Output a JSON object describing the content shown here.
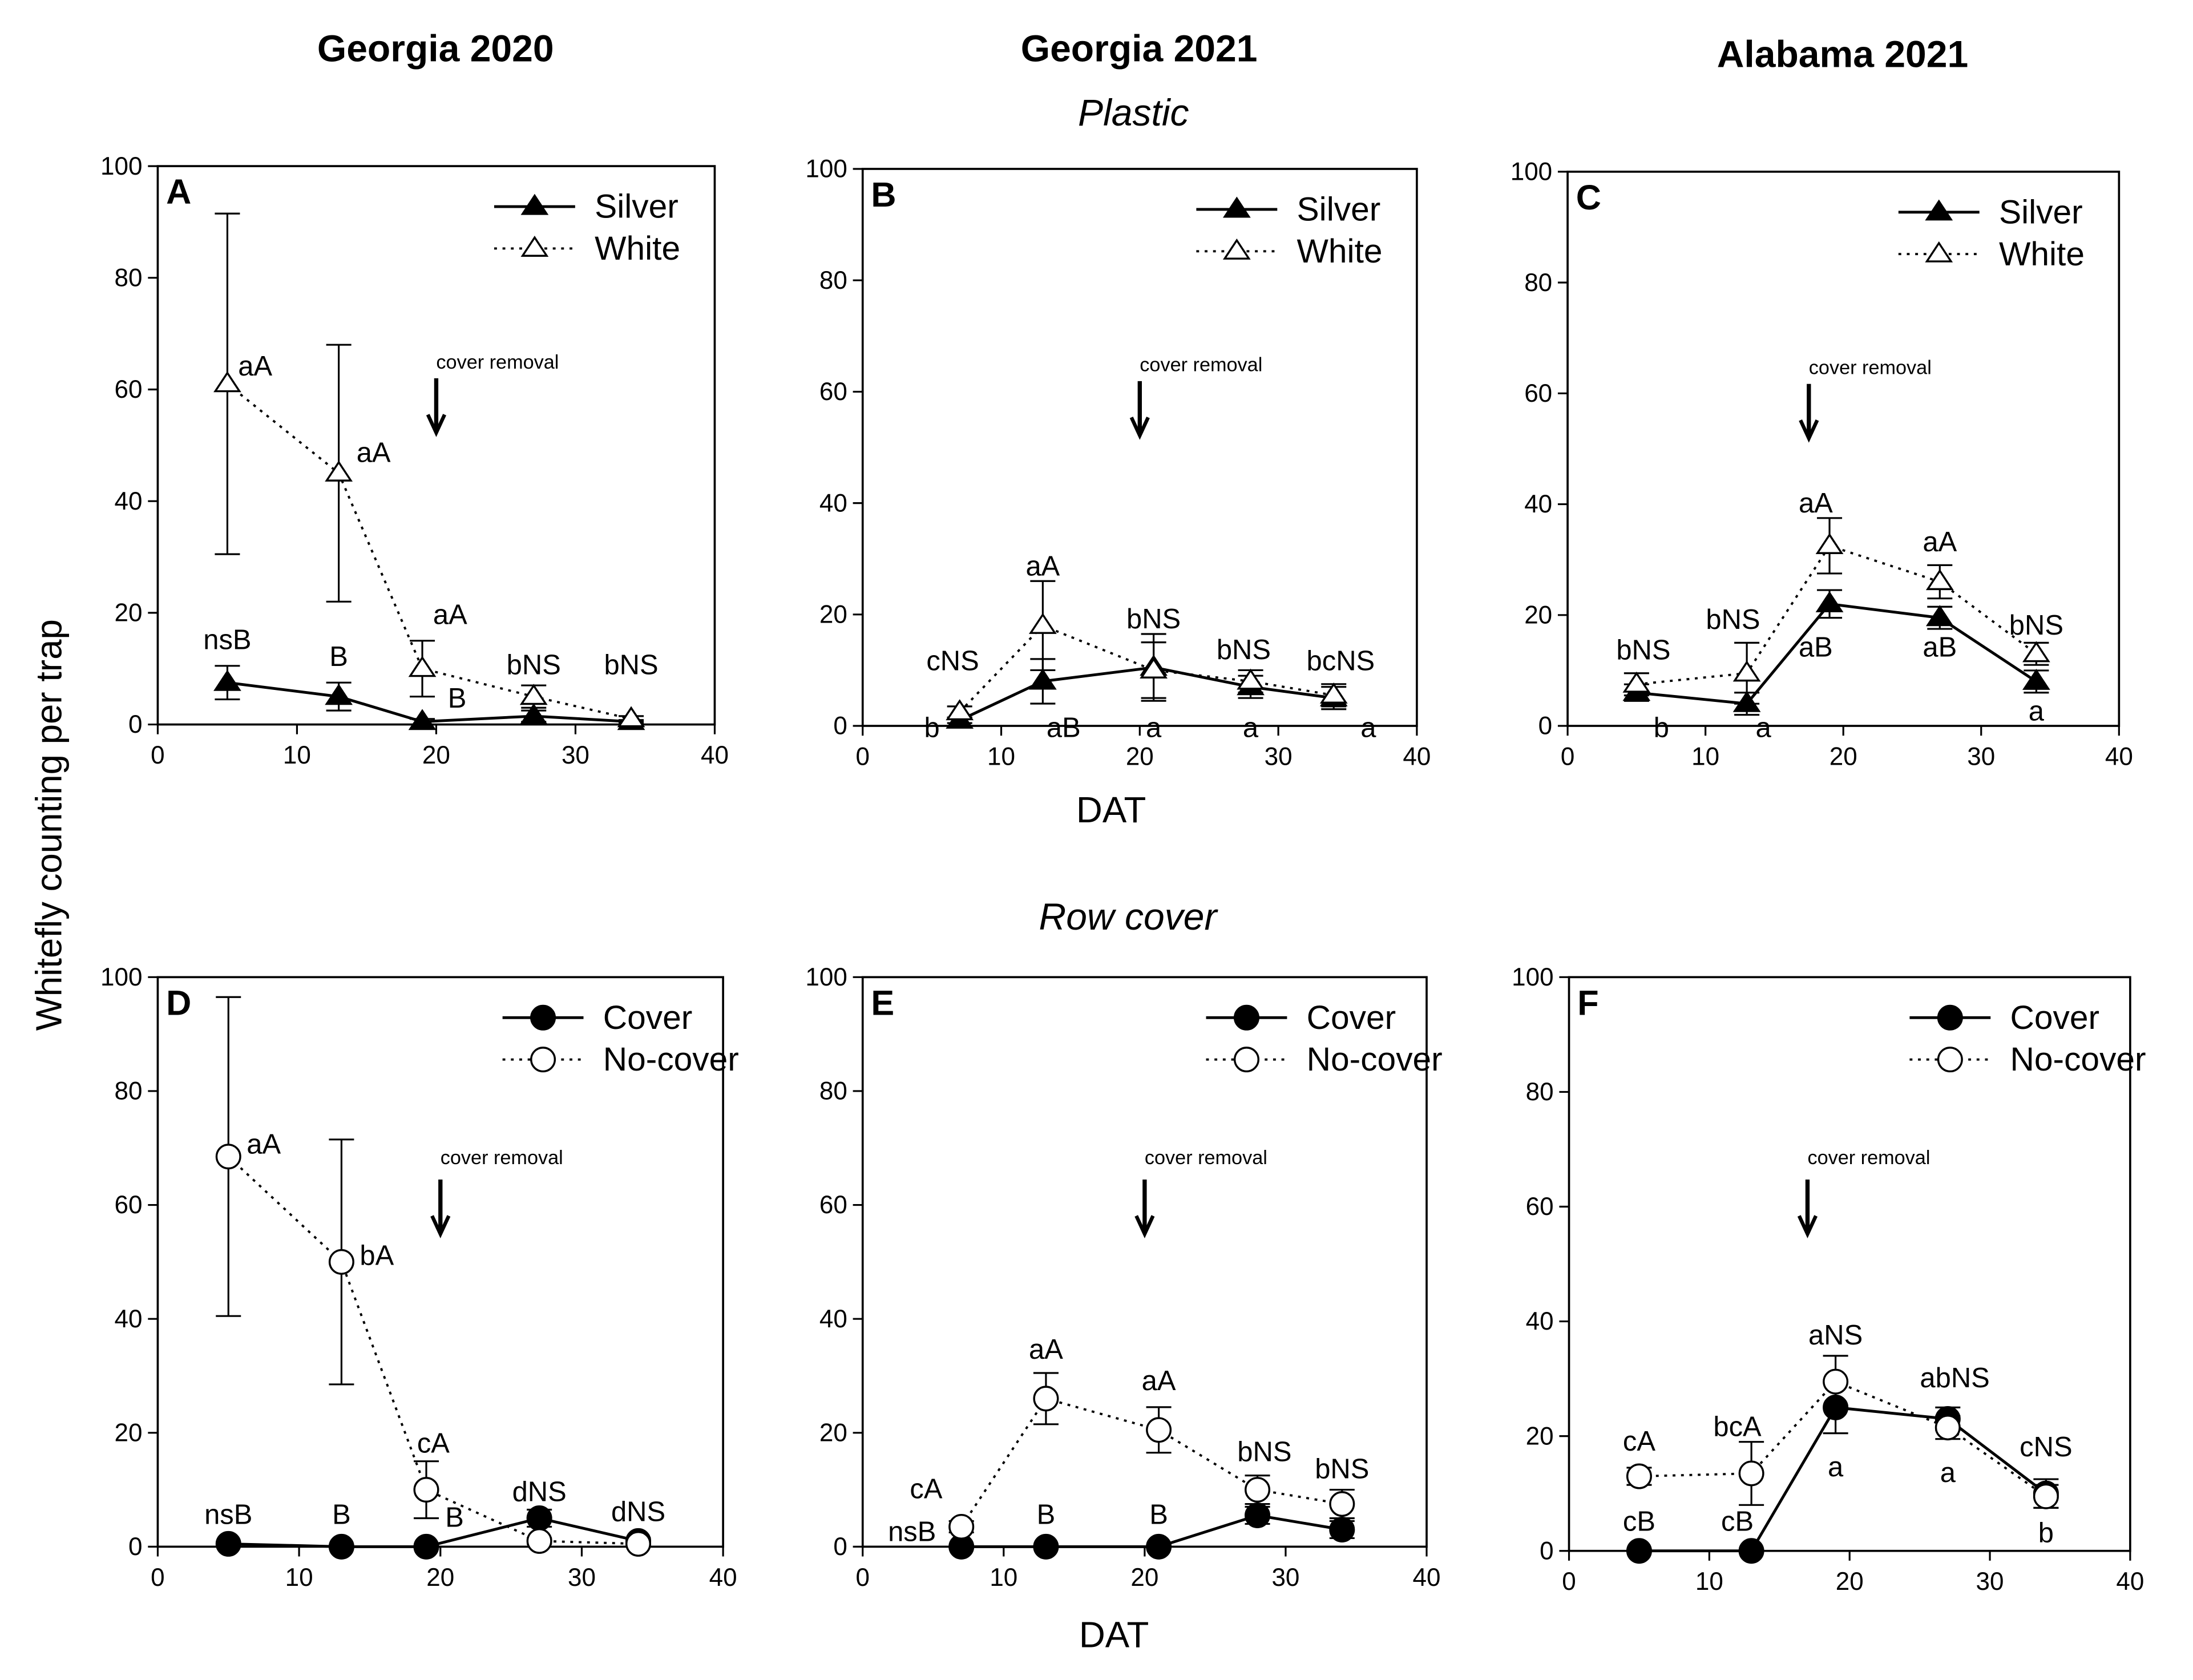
{
  "columns": [
    "Georgia 2020",
    "Georgia 2021",
    "Alabama 2021"
  ],
  "rows": [
    "Plastic",
    "Row cover"
  ],
  "ylabel": "Whitefly counting per trap",
  "xlabel": "DAT",
  "cover_removal_text": "cover removal",
  "chart_data": [
    {
      "type": "line",
      "panel": "A",
      "row": "Plastic",
      "column": "Georgia 2020",
      "xlim": [
        0,
        40
      ],
      "ylim": [
        0,
        100
      ],
      "xticks": [
        0,
        10,
        20,
        30,
        40
      ],
      "yticks": [
        0,
        20,
        40,
        60,
        80,
        100
      ],
      "legend_position": "top-right",
      "cover_removal_day": 20,
      "series": [
        {
          "name": "Silver",
          "marker": "triangle",
          "filled": true,
          "line": "solid",
          "x": [
            5,
            13,
            19,
            27,
            34
          ],
          "y": [
            7.5,
            5,
            0.5,
            1.5,
            0.5
          ],
          "err": [
            3,
            2.5,
            0.5,
            1,
            0.3
          ]
        },
        {
          "name": "White",
          "marker": "triangle",
          "filled": false,
          "line": "dotted",
          "x": [
            5,
            13,
            19,
            27,
            34
          ],
          "y": [
            61,
            45,
            10,
            5,
            1
          ],
          "err": [
            30.5,
            23,
            5,
            2,
            0.5
          ]
        }
      ],
      "annotations": [
        {
          "text": "nsB",
          "x": 5,
          "y": 13.5
        },
        {
          "text": "B",
          "x": 13,
          "y": 10.5
        },
        {
          "text": "B",
          "x": 21.5,
          "y": 3
        },
        {
          "text": "aA",
          "x": 7,
          "y": 62.5
        },
        {
          "text": "aA",
          "x": 15.5,
          "y": 47
        },
        {
          "text": "aA",
          "x": 21,
          "y": 18
        },
        {
          "text": "bNS",
          "x": 27,
          "y": 9
        },
        {
          "text": "bNS",
          "x": 34,
          "y": 9
        }
      ]
    },
    {
      "type": "line",
      "panel": "B",
      "row": "Plastic",
      "column": "Georgia 2021",
      "xlim": [
        0,
        40
      ],
      "ylim": [
        0,
        100
      ],
      "xticks": [
        0,
        10,
        20,
        30,
        40
      ],
      "yticks": [
        0,
        20,
        40,
        60,
        80,
        100
      ],
      "legend_position": "top-right",
      "cover_removal_day": 20,
      "series": [
        {
          "name": "Silver",
          "marker": "triangle",
          "filled": true,
          "line": "solid",
          "x": [
            7,
            13,
            21,
            28,
            34
          ],
          "y": [
            1,
            8,
            10.5,
            7,
            5
          ],
          "err": [
            0.5,
            4,
            6,
            2,
            2
          ]
        },
        {
          "name": "White",
          "marker": "triangle",
          "filled": false,
          "line": "dotted",
          "x": [
            7,
            13,
            21,
            28,
            34
          ],
          "y": [
            2.5,
            18,
            10,
            8,
            5.5
          ],
          "err": [
            1,
            8,
            5,
            2,
            2
          ]
        }
      ],
      "annotations": [
        {
          "text": "cNS",
          "x": 6.5,
          "y": 10
        },
        {
          "text": "aA",
          "x": 13,
          "y": 27
        },
        {
          "text": "bNS",
          "x": 21,
          "y": 17.5
        },
        {
          "text": "bNS",
          "x": 27.5,
          "y": 12
        },
        {
          "text": "bcNS",
          "x": 34.5,
          "y": 10
        },
        {
          "text": "b",
          "x": 5,
          "y": -2
        },
        {
          "text": "aB",
          "x": 14.5,
          "y": -2
        },
        {
          "text": "a",
          "x": 21,
          "y": -2
        },
        {
          "text": "a",
          "x": 28,
          "y": -2
        },
        {
          "text": "a",
          "x": 36.5,
          "y": -2
        }
      ]
    },
    {
      "type": "line",
      "panel": "C",
      "row": "Plastic",
      "column": "Alabama 2021",
      "xlim": [
        0,
        40
      ],
      "ylim": [
        0,
        100
      ],
      "xticks": [
        0,
        10,
        20,
        30,
        40
      ],
      "yticks": [
        0,
        20,
        40,
        60,
        80,
        100
      ],
      "legend_position": "top-right",
      "cover_removal_day": 17.5,
      "series": [
        {
          "name": "Silver",
          "marker": "triangle",
          "filled": true,
          "line": "solid",
          "x": [
            5,
            13,
            19,
            27,
            34
          ],
          "y": [
            6,
            4,
            22,
            19.5,
            8
          ],
          "err": [
            1.5,
            2,
            2.5,
            2,
            2
          ]
        },
        {
          "name": "White",
          "marker": "triangle",
          "filled": false,
          "line": "dotted",
          "x": [
            5,
            13,
            19,
            27,
            34
          ],
          "y": [
            7.5,
            9.5,
            32.5,
            26,
            13
          ],
          "err": [
            2,
            5.5,
            5,
            3,
            2
          ]
        }
      ],
      "annotations": [
        {
          "text": "bNS",
          "x": 5.5,
          "y": 12
        },
        {
          "text": "bNS",
          "x": 12,
          "y": 17.5
        },
        {
          "text": "aA",
          "x": 18,
          "y": 38.5
        },
        {
          "text": "aA",
          "x": 27,
          "y": 31.5
        },
        {
          "text": "bNS",
          "x": 34,
          "y": 16.5
        },
        {
          "text": "b",
          "x": 6.8,
          "y": -2
        },
        {
          "text": "a",
          "x": 14.2,
          "y": -2
        },
        {
          "text": "aB",
          "x": 18,
          "y": 12.5
        },
        {
          "text": "aB",
          "x": 27,
          "y": 12.5
        },
        {
          "text": "a",
          "x": 34,
          "y": 1
        }
      ]
    },
    {
      "type": "line",
      "panel": "D",
      "row": "Row cover",
      "column": "Georgia 2020",
      "xlim": [
        0,
        40
      ],
      "ylim": [
        0,
        100
      ],
      "xticks": [
        0,
        10,
        20,
        30,
        40
      ],
      "yticks": [
        0,
        20,
        40,
        60,
        80,
        100
      ],
      "legend_position": "top-right",
      "cover_removal_day": 20,
      "series": [
        {
          "name": "Cover",
          "marker": "circle",
          "filled": true,
          "line": "solid",
          "x": [
            5,
            13,
            19,
            27,
            34
          ],
          "y": [
            0.5,
            0,
            0,
            5,
            1
          ],
          "err": [
            0.3,
            0.2,
            0.2,
            1.5,
            0.5
          ]
        },
        {
          "name": "No-cover",
          "marker": "circle",
          "filled": false,
          "line": "dotted",
          "x": [
            5,
            13,
            19,
            27,
            34
          ],
          "y": [
            68.5,
            50,
            10,
            1,
            0.5
          ],
          "err": [
            28,
            21.5,
            5,
            0.5,
            0.3
          ]
        }
      ],
      "annotations": [
        {
          "text": "nsB",
          "x": 5,
          "y": 4
        },
        {
          "text": "B",
          "x": 13,
          "y": 4
        },
        {
          "text": "B",
          "x": 21,
          "y": 3.5
        },
        {
          "text": "aA",
          "x": 7.5,
          "y": 69
        },
        {
          "text": "bA",
          "x": 15.5,
          "y": 49.5
        },
        {
          "text": "cA",
          "x": 19.5,
          "y": 16.5
        },
        {
          "text": "dNS",
          "x": 27,
          "y": 8
        },
        {
          "text": "dNS",
          "x": 34,
          "y": 4.5
        }
      ]
    },
    {
      "type": "line",
      "panel": "E",
      "row": "Row cover",
      "column": "Georgia 2021",
      "xlim": [
        0,
        40
      ],
      "ylim": [
        0,
        100
      ],
      "xticks": [
        0,
        10,
        20,
        30,
        40
      ],
      "yticks": [
        0,
        20,
        40,
        60,
        80,
        100
      ],
      "legend_position": "top-right",
      "cover_removal_day": 20,
      "series": [
        {
          "name": "Cover",
          "marker": "circle",
          "filled": true,
          "line": "solid",
          "x": [
            7,
            13,
            21,
            28,
            34
          ],
          "y": [
            0,
            0,
            0,
            5.5,
            3
          ],
          "err": [
            0.2,
            0.2,
            0.2,
            1.5,
            1.5
          ]
        },
        {
          "name": "No-cover",
          "marker": "circle",
          "filled": false,
          "line": "dotted",
          "x": [
            7,
            13,
            21,
            28,
            34
          ],
          "y": [
            3.5,
            26,
            20.5,
            10,
            7.5
          ],
          "err": [
            1,
            4.5,
            4,
            2.5,
            2.5
          ]
        }
      ],
      "annotations": [
        {
          "text": "cA",
          "x": 4.5,
          "y": 8.5
        },
        {
          "text": "aA",
          "x": 13,
          "y": 33
        },
        {
          "text": "aA",
          "x": 21,
          "y": 27.5
        },
        {
          "text": "bNS",
          "x": 28.5,
          "y": 15
        },
        {
          "text": "bNS",
          "x": 34,
          "y": 12
        },
        {
          "text": "nsB",
          "x": 3.5,
          "y": 1
        },
        {
          "text": "B",
          "x": 13,
          "y": 4
        },
        {
          "text": "B",
          "x": 21,
          "y": 4
        }
      ]
    },
    {
      "type": "line",
      "panel": "F",
      "row": "Row cover",
      "column": "Alabama 2021",
      "xlim": [
        0,
        40
      ],
      "ylim": [
        0,
        100
      ],
      "xticks": [
        0,
        10,
        20,
        30,
        40
      ],
      "yticks": [
        0,
        20,
        40,
        60,
        80,
        100
      ],
      "legend_position": "top-right",
      "cover_removal_day": 17,
      "series": [
        {
          "name": "Cover",
          "marker": "circle",
          "filled": true,
          "line": "solid",
          "x": [
            5,
            13,
            19,
            27,
            34
          ],
          "y": [
            0,
            0,
            25,
            23,
            10
          ],
          "err": [
            0.2,
            0.2,
            4.5,
            2,
            2.5
          ]
        },
        {
          "name": "No-cover",
          "marker": "circle",
          "filled": false,
          "line": "dotted",
          "x": [
            5,
            13,
            19,
            27,
            34
          ],
          "y": [
            13,
            13.5,
            29.5,
            21.5,
            9.5
          ],
          "err": [
            1.5,
            5.5,
            4.5,
            2,
            2
          ]
        }
      ],
      "annotations": [
        {
          "text": "cA",
          "x": 5,
          "y": 17.5
        },
        {
          "text": "bcA",
          "x": 12,
          "y": 20
        },
        {
          "text": "aNS",
          "x": 19,
          "y": 36
        },
        {
          "text": "abNS",
          "x": 27.5,
          "y": 28.5
        },
        {
          "text": "cNS",
          "x": 34,
          "y": 16.5
        },
        {
          "text": "cB",
          "x": 5,
          "y": 3.5
        },
        {
          "text": "cB",
          "x": 12,
          "y": 3.5
        },
        {
          "text": "a",
          "x": 19,
          "y": 13
        },
        {
          "text": "a",
          "x": 27,
          "y": 12
        },
        {
          "text": "b",
          "x": 34,
          "y": 1.5
        }
      ]
    }
  ]
}
